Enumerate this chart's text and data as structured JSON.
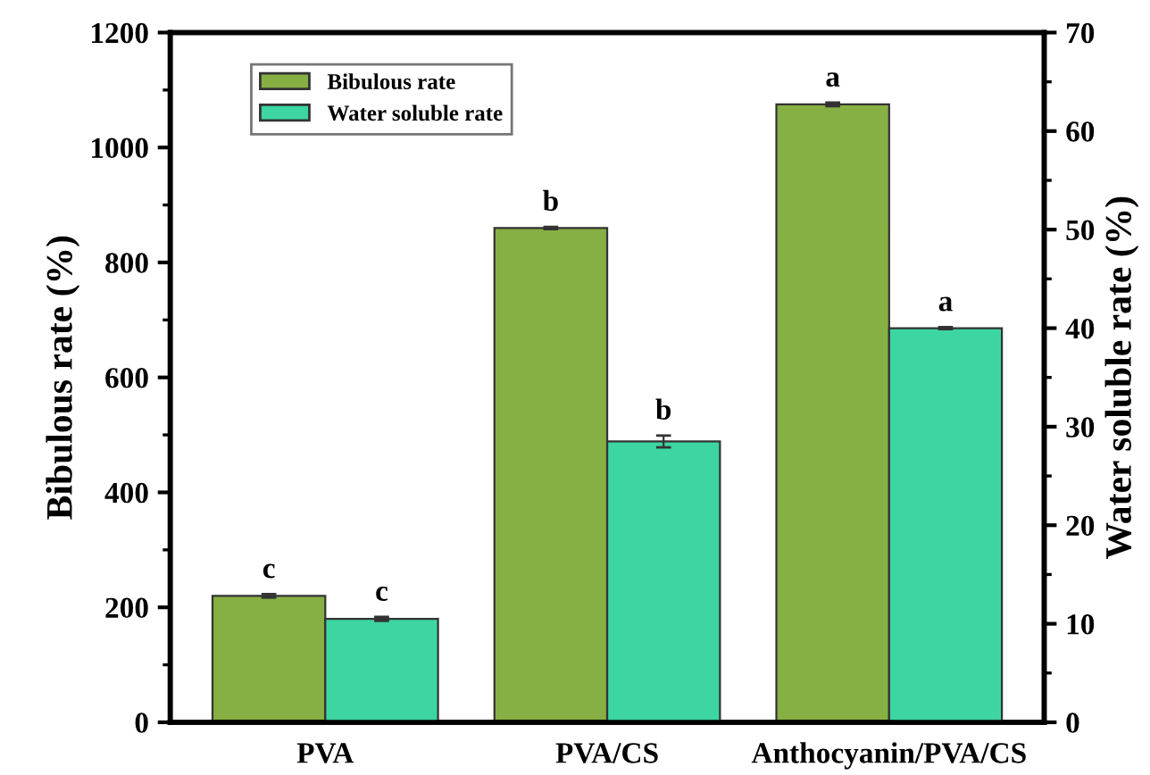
{
  "chart_data": {
    "type": "bar",
    "categories": [
      "PVA",
      "PVA/CS",
      "Anthocyanin/PVA/CS"
    ],
    "ylabel": "Bibulous rate (%)",
    "y2label": "Water soluble rate (%)",
    "ylim": [
      0,
      1200
    ],
    "yticks": [
      0,
      200,
      400,
      600,
      800,
      1000,
      1200
    ],
    "y2lim": [
      0,
      70
    ],
    "y2ticks": [
      0,
      10,
      20,
      30,
      40,
      50,
      60,
      70
    ],
    "series": [
      {
        "name": "Bibulous rate",
        "color": "#86b043",
        "values": [
          220,
          860,
          1075
        ],
        "errors": [
          3,
          2,
          3
        ],
        "value_labels": [
          "c",
          "b",
          "a"
        ]
      },
      {
        "name": "Water soluble rate",
        "color": "#3dd6a3",
        "axis": "y2",
        "values": [
          10.5,
          28.5,
          40.0
        ],
        "errors": [
          0.2,
          0.6,
          0.1
        ],
        "value_labels": [
          "c",
          "b",
          "a"
        ]
      }
    ],
    "legend": "top left",
    "grid": false
  }
}
